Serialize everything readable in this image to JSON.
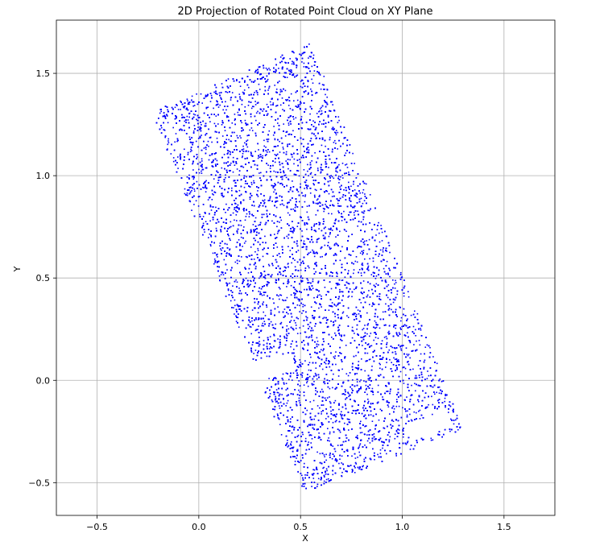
{
  "chart_data": {
    "type": "scatter",
    "title": "2D Projection of Rotated Point Cloud on XY Plane",
    "xlabel": "X",
    "ylabel": "Y",
    "xlim": [
      -0.7,
      1.75
    ],
    "ylim": [
      -0.66,
      1.76
    ],
    "xticks": [
      -0.5,
      0.0,
      0.5,
      1.0,
      1.5
    ],
    "xtick_labels": [
      "−0.5",
      "0.0",
      "0.5",
      "1.0",
      "1.5"
    ],
    "yticks": [
      -0.5,
      0.0,
      0.5,
      1.0,
      1.5
    ],
    "ytick_labels": [
      "−0.5",
      "0.0",
      "0.5",
      "1.0",
      "1.5"
    ],
    "grid": true,
    "marker_color": "#0000ff",
    "series": [
      {
        "region_polygon": [
          [
            -0.23,
            1.31
          ],
          [
            0.55,
            1.65
          ],
          [
            1.3,
            -0.24
          ],
          [
            0.52,
            -0.55
          ]
        ],
        "region_gaps": [
          [
            [
              0.28,
              0.09
            ],
            [
              0.45,
              0.13
            ],
            [
              0.48,
              0.05
            ],
            [
              0.3,
              0.0
            ]
          ],
          [
            [
              1.02,
              -0.21
            ],
            [
              1.22,
              -0.15
            ],
            [
              1.24,
              -0.23
            ],
            [
              1.05,
              -0.3
            ]
          ]
        ],
        "approx_point_count": 14000
      }
    ]
  }
}
